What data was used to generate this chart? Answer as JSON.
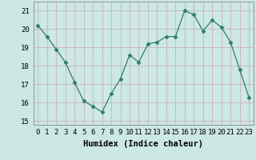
{
  "x": [
    0,
    1,
    2,
    3,
    4,
    5,
    6,
    7,
    8,
    9,
    10,
    11,
    12,
    13,
    14,
    15,
    16,
    17,
    18,
    19,
    20,
    21,
    22,
    23
  ],
  "y": [
    20.2,
    19.6,
    18.9,
    18.2,
    17.1,
    16.1,
    15.8,
    15.5,
    16.5,
    17.3,
    18.6,
    18.2,
    19.2,
    19.3,
    19.6,
    19.6,
    21.0,
    20.8,
    19.9,
    20.5,
    20.1,
    19.3,
    17.8,
    16.3
  ],
  "line_color": "#2e7d6b",
  "marker": "D",
  "marker_size": 2.5,
  "bg_color": "#cce8e4",
  "grid_color_major": "#b0ccc8",
  "grid_color_minor": "#d8eeea",
  "xlabel": "Humidex (Indice chaleur)",
  "ylim": [
    14.8,
    21.5
  ],
  "yticks": [
    15,
    16,
    17,
    18,
    19,
    20,
    21
  ],
  "xticks": [
    0,
    1,
    2,
    3,
    4,
    5,
    6,
    7,
    8,
    9,
    10,
    11,
    12,
    13,
    14,
    15,
    16,
    17,
    18,
    19,
    20,
    21,
    22,
    23
  ],
  "xlabel_fontsize": 7.5,
  "tick_fontsize": 6.5
}
